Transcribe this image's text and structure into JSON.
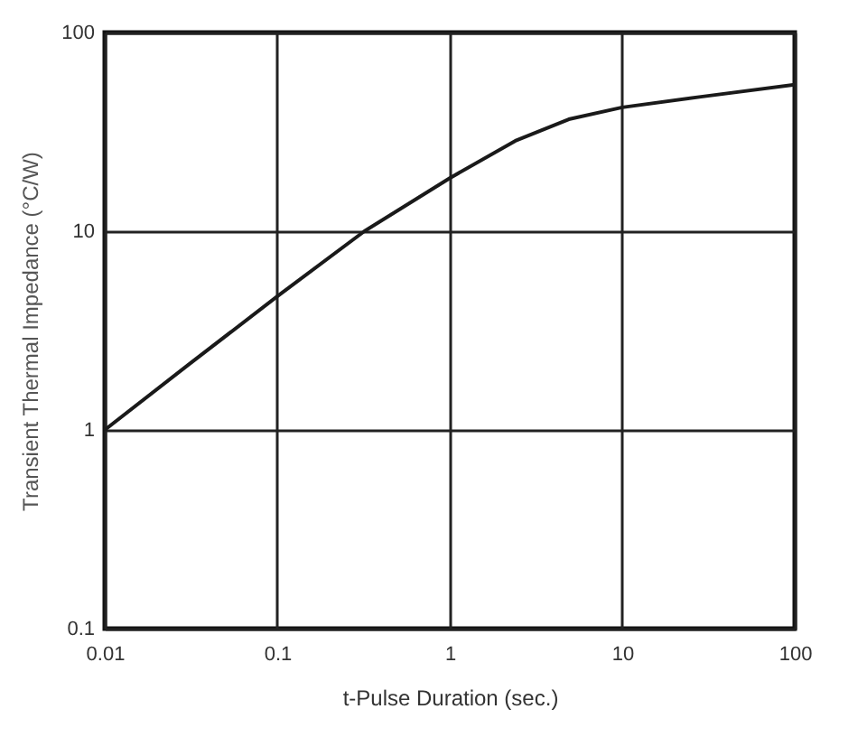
{
  "chart_data": {
    "type": "line",
    "xlabel": "t-Pulse Duration (sec.)",
    "ylabel": "Transient Thermal Impedance (°C/W)",
    "log": "xy",
    "grid": true,
    "line_style": "solid",
    "marker": "none",
    "xlim": [
      0.01,
      100
    ],
    "xticks": [
      0.01,
      0.1,
      1,
      10,
      100
    ],
    "ylim": [
      0.1,
      100
    ],
    "yticks": [
      0.1,
      1,
      10,
      100
    ],
    "x": [
      0.01,
      0.031,
      0.1,
      0.32,
      1,
      2.4,
      4.9,
      10,
      28.6,
      100
    ],
    "series": [
      {
        "color": "#1a1a1a",
        "values": [
          1,
          2.15,
          4.7,
          10,
          18.5,
          28.5,
          36.6,
          42,
          47.5,
          54.7
        ]
      }
    ]
  }
}
